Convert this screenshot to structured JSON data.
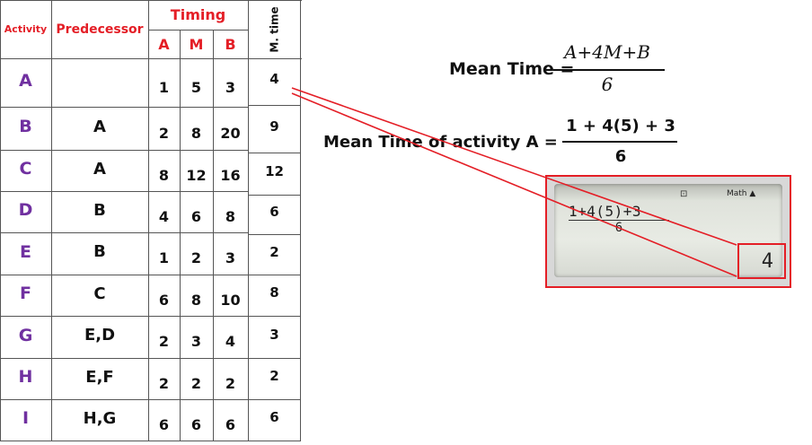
{
  "table": {
    "headers": {
      "activity": "Activity",
      "predecessor": "Predecessor",
      "timing": "Timing",
      "a": "A",
      "m": "M",
      "b": "B",
      "mean_time": "M. time"
    },
    "rows": [
      {
        "activity": "A",
        "predecessor": "",
        "a": "1",
        "m": "5",
        "b": "3",
        "mean_time": "4"
      },
      {
        "activity": "B",
        "predecessor": "A",
        "a": "2",
        "m": "8",
        "b": "20",
        "mean_time": "9"
      },
      {
        "activity": "C",
        "predecessor": "A",
        "a": "8",
        "m": "12",
        "b": "16",
        "mean_time": "12"
      },
      {
        "activity": "D",
        "predecessor": "B",
        "a": "4",
        "m": "6",
        "b": "8",
        "mean_time": "6"
      },
      {
        "activity": "E",
        "predecessor": "B",
        "a": "1",
        "m": "2",
        "b": "3",
        "mean_time": "2"
      },
      {
        "activity": "F",
        "predecessor": "C",
        "a": "6",
        "m": "8",
        "b": "10",
        "mean_time": "8"
      },
      {
        "activity": "G",
        "predecessor": "E,D",
        "a": "2",
        "m": "3",
        "b": "4",
        "mean_time": "3"
      },
      {
        "activity": "H",
        "predecessor": "E,F",
        "a": "2",
        "m": "2",
        "b": "2",
        "mean_time": "2"
      },
      {
        "activity": "I",
        "predecessor": "H,G",
        "a": "6",
        "m": "6",
        "b": "6",
        "mean_time": "6"
      }
    ]
  },
  "formula": {
    "label": "Mean Time =",
    "numerator": "A+4M+B",
    "denominator": "6"
  },
  "example": {
    "label": "Mean Time of activity A =",
    "numerator": "1 + 4(5) + 3",
    "denominator": "6"
  },
  "calculator": {
    "mode_icon": "⊡",
    "mode": "Math ▲",
    "input_numerator": "1+4(5)+3",
    "input_denominator": "6",
    "result": "4"
  },
  "colors": {
    "header_red": "#e41e26",
    "activity_purple": "#7030a0",
    "highlight_red": "#e41e26"
  }
}
